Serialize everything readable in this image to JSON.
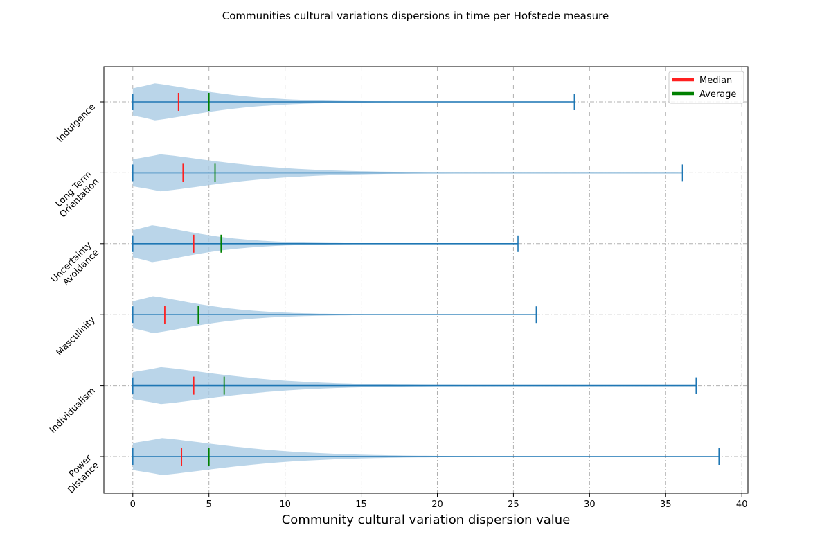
{
  "chart_data": {
    "type": "violin",
    "orientation": "horizontal",
    "title": "Communities cultural variations dispersions in time per Hofstede measure",
    "xlabel": "Community cultural variation dispersion value",
    "ylabel": "",
    "xlim": [
      -1.9,
      40.4
    ],
    "xticks": [
      0,
      5,
      10,
      15,
      20,
      25,
      30,
      35,
      40
    ],
    "grid": true,
    "legend": {
      "placement": "top-right",
      "entries": [
        {
          "label": "Median",
          "color": "#ff2020"
        },
        {
          "label": "Average",
          "color": "#008000"
        }
      ]
    },
    "colors": {
      "violin_fill": "#a9cbe3",
      "whisker_line": "#1f77b4",
      "median": "#ff2020",
      "average": "#008000"
    },
    "categories": [
      {
        "label": "Power\nDistance",
        "min": 0,
        "max": 38.5,
        "median": 3.2,
        "average": 5.0
      },
      {
        "label": "Individualism",
        "min": 0,
        "max": 37.0,
        "median": 4.0,
        "average": 6.0
      },
      {
        "label": "Masculinity",
        "min": 0,
        "max": 26.5,
        "median": 2.1,
        "average": 4.3
      },
      {
        "label": "Uncertainty\nAvoidance",
        "min": 0,
        "max": 25.3,
        "median": 4.0,
        "average": 5.8
      },
      {
        "label": "Long Term\nOrientation",
        "min": 0,
        "max": 36.1,
        "median": 3.3,
        "average": 5.4
      },
      {
        "label": "Indulgence",
        "min": 0,
        "max": 29.0,
        "median": 3.0,
        "average": 5.0
      }
    ]
  }
}
